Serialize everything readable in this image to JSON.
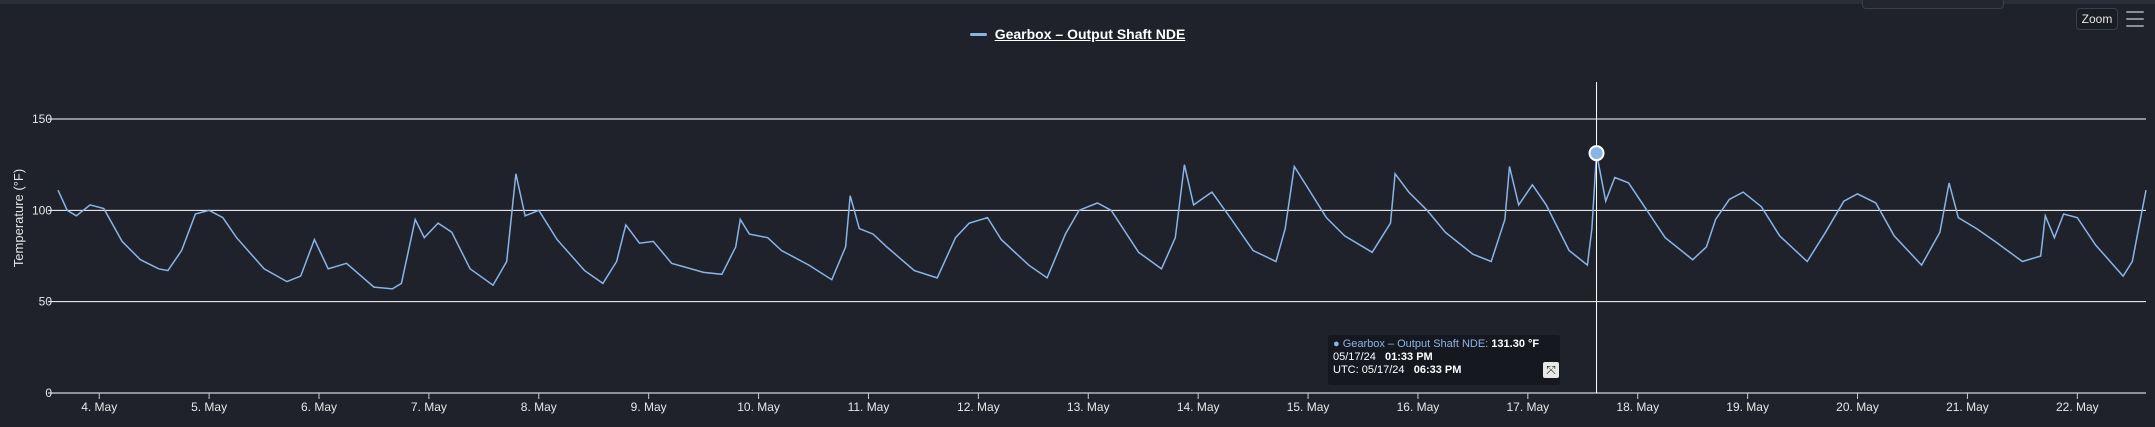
{
  "toolbar": {
    "zoom_label": "Zoom",
    "menu_icon": "hamburger-menu-icon"
  },
  "tooltip": {
    "series_name": "Gearbox – Output Shaft NDE",
    "value": "131.30 °F",
    "local_date": "05/17/24",
    "local_time": "01:33 PM",
    "utc_label": "UTC: 05/17/24",
    "utc_time": "06:33 PM",
    "expand_icon": "expand-icon"
  },
  "colors": {
    "series": "#8ab4e8",
    "background": "#1f222b",
    "grid": "#ffffff"
  },
  "chart_data": {
    "type": "line",
    "title": "",
    "ylabel": "Temperature (°F)",
    "xlabel": "",
    "ylim": [
      0,
      150
    ],
    "yticks": [
      0,
      50,
      100,
      150
    ],
    "grid": true,
    "legend": "top-center",
    "x_ticks": [
      "4. May",
      "5. May",
      "6. May",
      "7. May",
      "8. May",
      "9. May",
      "10. May",
      "11. May",
      "12. May",
      "13. May",
      "14. May",
      "15. May",
      "16. May",
      "17. May",
      "18. May",
      "19. May",
      "20. May",
      "21. May",
      "22. May"
    ],
    "x_range": [
      "2024-05-03 15:00",
      "2024-05-22 15:00"
    ],
    "series": [
      {
        "name": "Gearbox – Output Shaft NDE",
        "points": [
          [
            "2024-05-03 15:00",
            111
          ],
          [
            "2024-05-03 17:00",
            100
          ],
          [
            "2024-05-03 19:00",
            97
          ],
          [
            "2024-05-03 22:00",
            103
          ],
          [
            "2024-05-04 01:00",
            101
          ],
          [
            "2024-05-04 05:00",
            83
          ],
          [
            "2024-05-04 09:00",
            73
          ],
          [
            "2024-05-04 13:00",
            68
          ],
          [
            "2024-05-04 15:00",
            67
          ],
          [
            "2024-05-04 18:00",
            78
          ],
          [
            "2024-05-04 21:00",
            98
          ],
          [
            "2024-05-05 00:00",
            100
          ],
          [
            "2024-05-05 03:00",
            96
          ],
          [
            "2024-05-05 06:00",
            85
          ],
          [
            "2024-05-05 12:00",
            68
          ],
          [
            "2024-05-05 17:00",
            61
          ],
          [
            "2024-05-05 20:00",
            64
          ],
          [
            "2024-05-05 23:00",
            84
          ],
          [
            "2024-05-06 02:00",
            68
          ],
          [
            "2024-05-06 06:00",
            71
          ],
          [
            "2024-05-06 12:00",
            58
          ],
          [
            "2024-05-06 16:00",
            57
          ],
          [
            "2024-05-06 18:00",
            60
          ],
          [
            "2024-05-06 21:00",
            95
          ],
          [
            "2024-05-06 23:00",
            85
          ],
          [
            "2024-05-07 02:00",
            93
          ],
          [
            "2024-05-07 05:00",
            88
          ],
          [
            "2024-05-07 09:00",
            68
          ],
          [
            "2024-05-07 14:00",
            59
          ],
          [
            "2024-05-07 17:00",
            72
          ],
          [
            "2024-05-07 19:00",
            120
          ],
          [
            "2024-05-07 21:00",
            97
          ],
          [
            "2024-05-08 00:00",
            100
          ],
          [
            "2024-05-08 04:00",
            84
          ],
          [
            "2024-05-08 10:00",
            67
          ],
          [
            "2024-05-08 14:00",
            60
          ],
          [
            "2024-05-08 17:00",
            72
          ],
          [
            "2024-05-08 19:00",
            92
          ],
          [
            "2024-05-08 22:00",
            82
          ],
          [
            "2024-05-09 01:00",
            83
          ],
          [
            "2024-05-09 05:00",
            71
          ],
          [
            "2024-05-09 12:00",
            66
          ],
          [
            "2024-05-09 16:00",
            65
          ],
          [
            "2024-05-09 19:00",
            80
          ],
          [
            "2024-05-09 20:00",
            95
          ],
          [
            "2024-05-09 22:00",
            87
          ],
          [
            "2024-05-10 02:00",
            85
          ],
          [
            "2024-05-10 05:00",
            78
          ],
          [
            "2024-05-10 11:00",
            70
          ],
          [
            "2024-05-10 16:00",
            62
          ],
          [
            "2024-05-10 19:00",
            80
          ],
          [
            "2024-05-10 20:00",
            108
          ],
          [
            "2024-05-10 22:00",
            90
          ],
          [
            "2024-05-11 01:00",
            87
          ],
          [
            "2024-05-11 04:00",
            80
          ],
          [
            "2024-05-11 10:00",
            67
          ],
          [
            "2024-05-11 15:00",
            63
          ],
          [
            "2024-05-11 19:00",
            85
          ],
          [
            "2024-05-11 22:00",
            93
          ],
          [
            "2024-05-12 02:00",
            96
          ],
          [
            "2024-05-12 05:00",
            84
          ],
          [
            "2024-05-12 11:00",
            70
          ],
          [
            "2024-05-12 15:00",
            63
          ],
          [
            "2024-05-12 19:00",
            87
          ],
          [
            "2024-05-12 22:00",
            100
          ],
          [
            "2024-05-13 02:00",
            104
          ],
          [
            "2024-05-13 05:00",
            100
          ],
          [
            "2024-05-13 11:00",
            77
          ],
          [
            "2024-05-13 16:00",
            68
          ],
          [
            "2024-05-13 19:00",
            85
          ],
          [
            "2024-05-13 21:00",
            125
          ],
          [
            "2024-05-13 23:00",
            103
          ],
          [
            "2024-05-14 03:00",
            110
          ],
          [
            "2024-05-14 07:00",
            96
          ],
          [
            "2024-05-14 12:00",
            78
          ],
          [
            "2024-05-14 17:00",
            72
          ],
          [
            "2024-05-14 19:00",
            90
          ],
          [
            "2024-05-14 21:00",
            124
          ],
          [
            "2024-05-15 00:00",
            112
          ],
          [
            "2024-05-15 04:00",
            96
          ],
          [
            "2024-05-15 08:00",
            86
          ],
          [
            "2024-05-15 14:00",
            77
          ],
          [
            "2024-05-15 18:00",
            93
          ],
          [
            "2024-05-15 19:00",
            120
          ],
          [
            "2024-05-15 22:00",
            110
          ],
          [
            "2024-05-16 02:00",
            100
          ],
          [
            "2024-05-16 06:00",
            88
          ],
          [
            "2024-05-16 12:00",
            76
          ],
          [
            "2024-05-16 16:00",
            72
          ],
          [
            "2024-05-16 19:00",
            95
          ],
          [
            "2024-05-16 20:00",
            124
          ],
          [
            "2024-05-16 22:00",
            103
          ],
          [
            "2024-05-17 01:00",
            114
          ],
          [
            "2024-05-17 04:00",
            103
          ],
          [
            "2024-05-17 09:00",
            78
          ],
          [
            "2024-05-17 13:00",
            70
          ],
          [
            "2024-05-17 14:00",
            90
          ],
          [
            "2024-05-17 15:00",
            131.3
          ],
          [
            "2024-05-17 17:00",
            105
          ],
          [
            "2024-05-17 19:00",
            118
          ],
          [
            "2024-05-17 22:00",
            115
          ],
          [
            "2024-05-18 02:00",
            100
          ],
          [
            "2024-05-18 06:00",
            85
          ],
          [
            "2024-05-18 12:00",
            73
          ],
          [
            "2024-05-18 15:00",
            80
          ],
          [
            "2024-05-18 17:00",
            95
          ],
          [
            "2024-05-18 20:00",
            106
          ],
          [
            "2024-05-18 23:00",
            110
          ],
          [
            "2024-05-19 03:00",
            102
          ],
          [
            "2024-05-19 07:00",
            86
          ],
          [
            "2024-05-19 13:00",
            72
          ],
          [
            "2024-05-19 17:00",
            88
          ],
          [
            "2024-05-19 21:00",
            105
          ],
          [
            "2024-05-20 00:00",
            109
          ],
          [
            "2024-05-20 04:00",
            104
          ],
          [
            "2024-05-20 08:00",
            86
          ],
          [
            "2024-05-20 14:00",
            70
          ],
          [
            "2024-05-20 18:00",
            88
          ],
          [
            "2024-05-20 20:00",
            115
          ],
          [
            "2024-05-20 22:00",
            96
          ],
          [
            "2024-05-21 02:00",
            90
          ],
          [
            "2024-05-21 06:00",
            83
          ],
          [
            "2024-05-21 12:00",
            72
          ],
          [
            "2024-05-21 16:00",
            75
          ],
          [
            "2024-05-21 17:00",
            97
          ],
          [
            "2024-05-21 19:00",
            85
          ],
          [
            "2024-05-21 21:00",
            98
          ],
          [
            "2024-05-22 00:00",
            96
          ],
          [
            "2024-05-22 04:00",
            81
          ],
          [
            "2024-05-22 10:00",
            64
          ],
          [
            "2024-05-22 12:00",
            72
          ],
          [
            "2024-05-22 14:00",
            98
          ],
          [
            "2024-05-22 15:00",
            111
          ]
        ]
      }
    ],
    "highlight": {
      "x": "2024-05-17 15:00",
      "y": 131.3
    }
  }
}
